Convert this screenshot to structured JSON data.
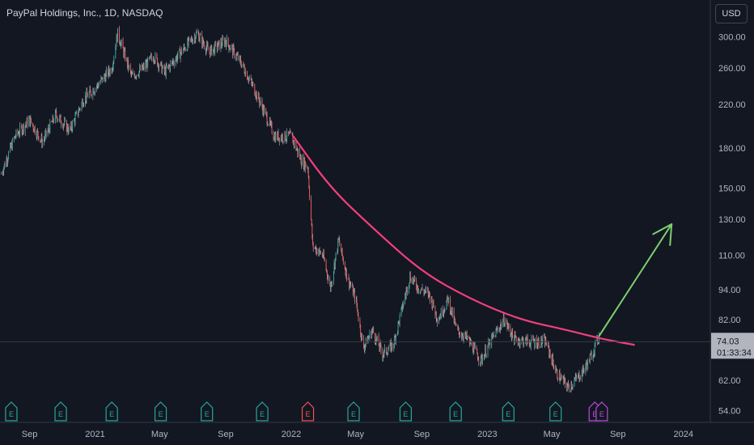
{
  "header": {
    "title": "PayPal Holdings, Inc., 1D, NASDAQ",
    "currency": "USD"
  },
  "colors": {
    "background": "#131722",
    "up": "#26a69a",
    "down": "#ef5350",
    "wick": "#b2b5be",
    "trendline": "#f23f7c",
    "arrow": "#7ccf6e",
    "badge_green": "#26a69a",
    "badge_red": "#ef5350",
    "badge_purple": "#b74cd6",
    "price_tag": "#b2b5be",
    "grid_line": "#363a45"
  },
  "price_tag": {
    "value": "74.03",
    "countdown": "01:33:34"
  },
  "chart_data": {
    "type": "candlestick",
    "y_scale": "log",
    "ylim": [
      50,
      330
    ],
    "x_range": [
      "2020-07-08",
      "2024-02-20"
    ],
    "y_ticks": [
      "300.00",
      "260.00",
      "220.00",
      "180.00",
      "150.00",
      "130.00",
      "110.00",
      "94.00",
      "82.00",
      "62.00",
      "54.00"
    ],
    "x_ticks": [
      {
        "label": "Sep",
        "date": "2020-09-01"
      },
      {
        "label": "2021",
        "date": "2021-01-01"
      },
      {
        "label": "May",
        "date": "2021-05-01"
      },
      {
        "label": "Sep",
        "date": "2021-09-01"
      },
      {
        "label": "2022",
        "date": "2022-01-01"
      },
      {
        "label": "May",
        "date": "2022-05-01"
      },
      {
        "label": "Sep",
        "date": "2022-09-01"
      },
      {
        "label": "2023",
        "date": "2023-01-01"
      },
      {
        "label": "May",
        "date": "2023-05-01"
      },
      {
        "label": "Sep",
        "date": "2023-09-01"
      },
      {
        "label": "2024",
        "date": "2024-01-01"
      }
    ],
    "close_path": [
      [
        "2020-07-10",
        160
      ],
      [
        "2020-08-05",
        190
      ],
      [
        "2020-09-01",
        205
      ],
      [
        "2020-09-25",
        185
      ],
      [
        "2020-10-20",
        210
      ],
      [
        "2020-11-15",
        195
      ],
      [
        "2020-12-10",
        225
      ],
      [
        "2021-01-05",
        240
      ],
      [
        "2021-02-01",
        260
      ],
      [
        "2021-02-12",
        305
      ],
      [
        "2021-03-10",
        250
      ],
      [
        "2021-04-01",
        260
      ],
      [
        "2021-04-20",
        275
      ],
      [
        "2021-05-10",
        255
      ],
      [
        "2021-06-10",
        280
      ],
      [
        "2021-07-10",
        305
      ],
      [
        "2021-08-01",
        280
      ],
      [
        "2021-09-01",
        295
      ],
      [
        "2021-10-01",
        265
      ],
      [
        "2021-10-25",
        235
      ],
      [
        "2021-11-10",
        215
      ],
      [
        "2021-12-01",
        190
      ],
      [
        "2022-01-01",
        190
      ],
      [
        "2022-01-20",
        170
      ],
      [
        "2022-02-01",
        165
      ],
      [
        "2022-02-10",
        115
      ],
      [
        "2022-03-01",
        110
      ],
      [
        "2022-03-15",
        95
      ],
      [
        "2022-03-30",
        118
      ],
      [
        "2022-04-15",
        100
      ],
      [
        "2022-05-01",
        90
      ],
      [
        "2022-05-15",
        72
      ],
      [
        "2022-06-01",
        78
      ],
      [
        "2022-06-20",
        70
      ],
      [
        "2022-07-10",
        73
      ],
      [
        "2022-08-10",
        100
      ],
      [
        "2022-08-25",
        95
      ],
      [
        "2022-09-15",
        92
      ],
      [
        "2022-10-01",
        82
      ],
      [
        "2022-10-20",
        90
      ],
      [
        "2022-11-05",
        78
      ],
      [
        "2022-11-25",
        75
      ],
      [
        "2022-12-20",
        68
      ],
      [
        "2023-01-10",
        75
      ],
      [
        "2023-02-01",
        82
      ],
      [
        "2023-02-20",
        75
      ],
      [
        "2023-03-20",
        74
      ],
      [
        "2023-04-20",
        74
      ],
      [
        "2023-05-10",
        64
      ],
      [
        "2023-06-01",
        60
      ],
      [
        "2023-06-25",
        64
      ],
      [
        "2023-07-10",
        68
      ],
      [
        "2023-07-28",
        76
      ]
    ],
    "trendline": [
      [
        "2022-01-05",
        190
      ],
      [
        "2022-03-15",
        150
      ],
      [
        "2022-06-01",
        125
      ],
      [
        "2022-09-01",
        102
      ],
      [
        "2022-12-01",
        90
      ],
      [
        "2023-03-01",
        82
      ],
      [
        "2023-06-01",
        78
      ],
      [
        "2023-08-01",
        75
      ],
      [
        "2023-10-01",
        73
      ]
    ],
    "arrow": {
      "from": [
        "2023-07-28",
        76
      ],
      "to": [
        "2023-12-10",
        127
      ]
    },
    "earnings_badges": [
      {
        "date": "2020-07-29",
        "letter": "E",
        "color": "green"
      },
      {
        "date": "2020-10-29",
        "letter": "E",
        "color": "green"
      },
      {
        "date": "2021-02-01",
        "letter": "E",
        "color": "green"
      },
      {
        "date": "2021-05-03",
        "letter": "E",
        "color": "green"
      },
      {
        "date": "2021-07-28",
        "letter": "E",
        "color": "green"
      },
      {
        "date": "2021-11-08",
        "letter": "E",
        "color": "green"
      },
      {
        "date": "2022-02-01",
        "letter": "E",
        "color": "red"
      },
      {
        "date": "2022-04-27",
        "letter": "E",
        "color": "green"
      },
      {
        "date": "2022-08-02",
        "letter": "E",
        "color": "green"
      },
      {
        "date": "2022-11-03",
        "letter": "E",
        "color": "green"
      },
      {
        "date": "2023-02-09",
        "letter": "E",
        "color": "green"
      },
      {
        "date": "2023-05-08",
        "letter": "E",
        "color": "green"
      },
      {
        "date": "2023-07-20",
        "letter": "E",
        "color": "purple"
      },
      {
        "date": "2023-08-02",
        "letter": "E",
        "color": "purple"
      }
    ]
  }
}
